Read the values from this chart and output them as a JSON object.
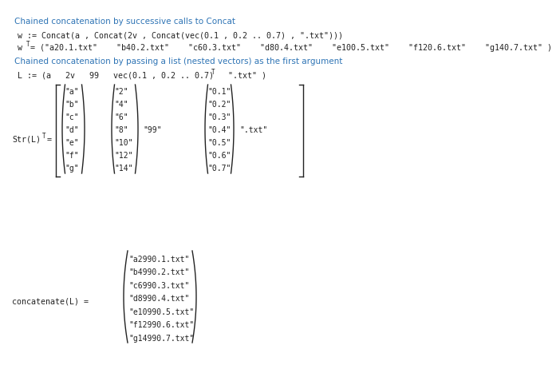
{
  "bg_color": "#ffffff",
  "blue_color": "#2E74B5",
  "dark_color": "#222222",
  "heading1": "Chained concatenation by successive calls to Concat",
  "heading2": "Chained concatenation by passing a list (nested vectors) as the first argument",
  "line_w": "w := Concat(a , Concat(2v , Concat(vec(0.1 , 0.2 .. 0.7) , \".txt\")))",
  "line_wT_eq": "= (\"a20.1.txt\"    \"b40.2.txt\"    \"c60.3.txt\"    \"d80.4.txt\"    \"e100.5.txt\"    \"f120.6.txt\"    \"g140.7.txt\" )",
  "line_L": "L := (a   2v   99   vec(0.1 , 0.2 .. 0.7)   \".txt\" )",
  "col1": [
    "\"a\"",
    "\"b\"",
    "\"c\"",
    "\"d\"",
    "\"e\"",
    "\"f\"",
    "\"g\""
  ],
  "col2": [
    "\"2\"",
    "\"4\"",
    "\"6\"",
    "\"8\"",
    "\"10\"",
    "\"12\"",
    "\"14\""
  ],
  "col3": [
    "\"0.1\"",
    "\"0.2\"",
    "\"0.3\"",
    "\"0.4\"",
    "\"0.5\"",
    "\"0.6\"",
    "\"0.7\""
  ],
  "scalar99": "\"99\"",
  "scalar_txt": "\".txt\"",
  "concat_label": "concatenate(L) =",
  "concat_values": [
    "\"a2990.1.txt\"",
    "\"b4990.2.txt\"",
    "\"c6990.3.txt\"",
    "\"d8990.4.txt\"",
    "\"e10990.5.txt\"",
    "\"f12990.6.txt\"",
    "\"g14990.7.txt\""
  ],
  "fs_heading": 7.5,
  "fs_mono": 7.2,
  "fs_small": 7.0,
  "fs_sup": 5.5
}
